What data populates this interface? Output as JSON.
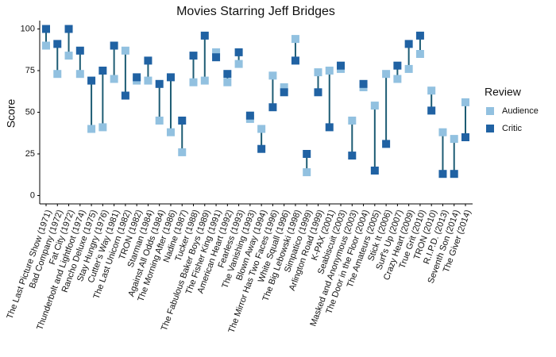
{
  "chart_data": {
    "type": "dumbbell",
    "title": "Movies Starring Jeff Bridges",
    "y_label": "Score",
    "legend_title": "Review",
    "categories": [
      "The Last Picture Show (1971)",
      "Bad Company (1972)",
      "Fat City (1972)",
      "Thunderbolt and Lightfoot (1974)",
      "Rancho Deluxe (1975)",
      "Stay Hungry (1976)",
      "Cutter's Way (1981)",
      "The Last Unicorn (1982)",
      "TRON (1982)",
      "Starman (1984)",
      "Against All Odds (1984)",
      "The Morning After (1986)",
      "Nadine (1987)",
      "Tucker (1988)",
      "The Fabulous Baker Boys (1989)",
      "The Fisher King (1991)",
      "American Heart (1992)",
      "Fearless (1993)",
      "The Vanishing (1993)",
      "Blown Away (1994)",
      "The Mirror Has Two Faces (1996)",
      "White Squall (1996)",
      "The Big Lebowski (1998)",
      "Simpatico (1999)",
      "Arlington Road (1999)",
      "K-PAX (2001)",
      "Seabiscuit (2003)",
      "Masked and Anonymous (2003)",
      "The Door in the Floor (2004)",
      "The Amateurs (2005)",
      "Stick It (2006)",
      "Surf's Up (2007)",
      "Crazy Heart (2009)",
      "True Grit (2010)",
      "TRON (2010)",
      "R.I.P.D. (2013)",
      "Seventh Son (2014)",
      "The Giver (2014)"
    ],
    "series": [
      {
        "name": "Audience",
        "color": "#92c1e0",
        "values": [
          90,
          73,
          84,
          73,
          40,
          41,
          70,
          87,
          69,
          69,
          45,
          38,
          26,
          68,
          69,
          86,
          68,
          79,
          46,
          40,
          72,
          65,
          94,
          14,
          74,
          75,
          76,
          45,
          65,
          54,
          73,
          70,
          76,
          85,
          63,
          38,
          34,
          56
        ]
      },
      {
        "name": "Critic",
        "color": "#2062a3",
        "values": [
          100,
          91,
          100,
          87,
          69,
          75,
          90,
          60,
          71,
          81,
          67,
          71,
          45,
          84,
          96,
          83,
          73,
          86,
          48,
          28,
          53,
          62,
          81,
          25,
          62,
          41,
          78,
          24,
          67,
          15,
          31,
          78,
          91,
          96,
          51,
          13,
          13,
          35
        ]
      }
    ],
    "line_color": "#1d5c74",
    "ylim": [
      -5,
      105
    ],
    "yticks": [
      0,
      25,
      50,
      75,
      100
    ]
  }
}
